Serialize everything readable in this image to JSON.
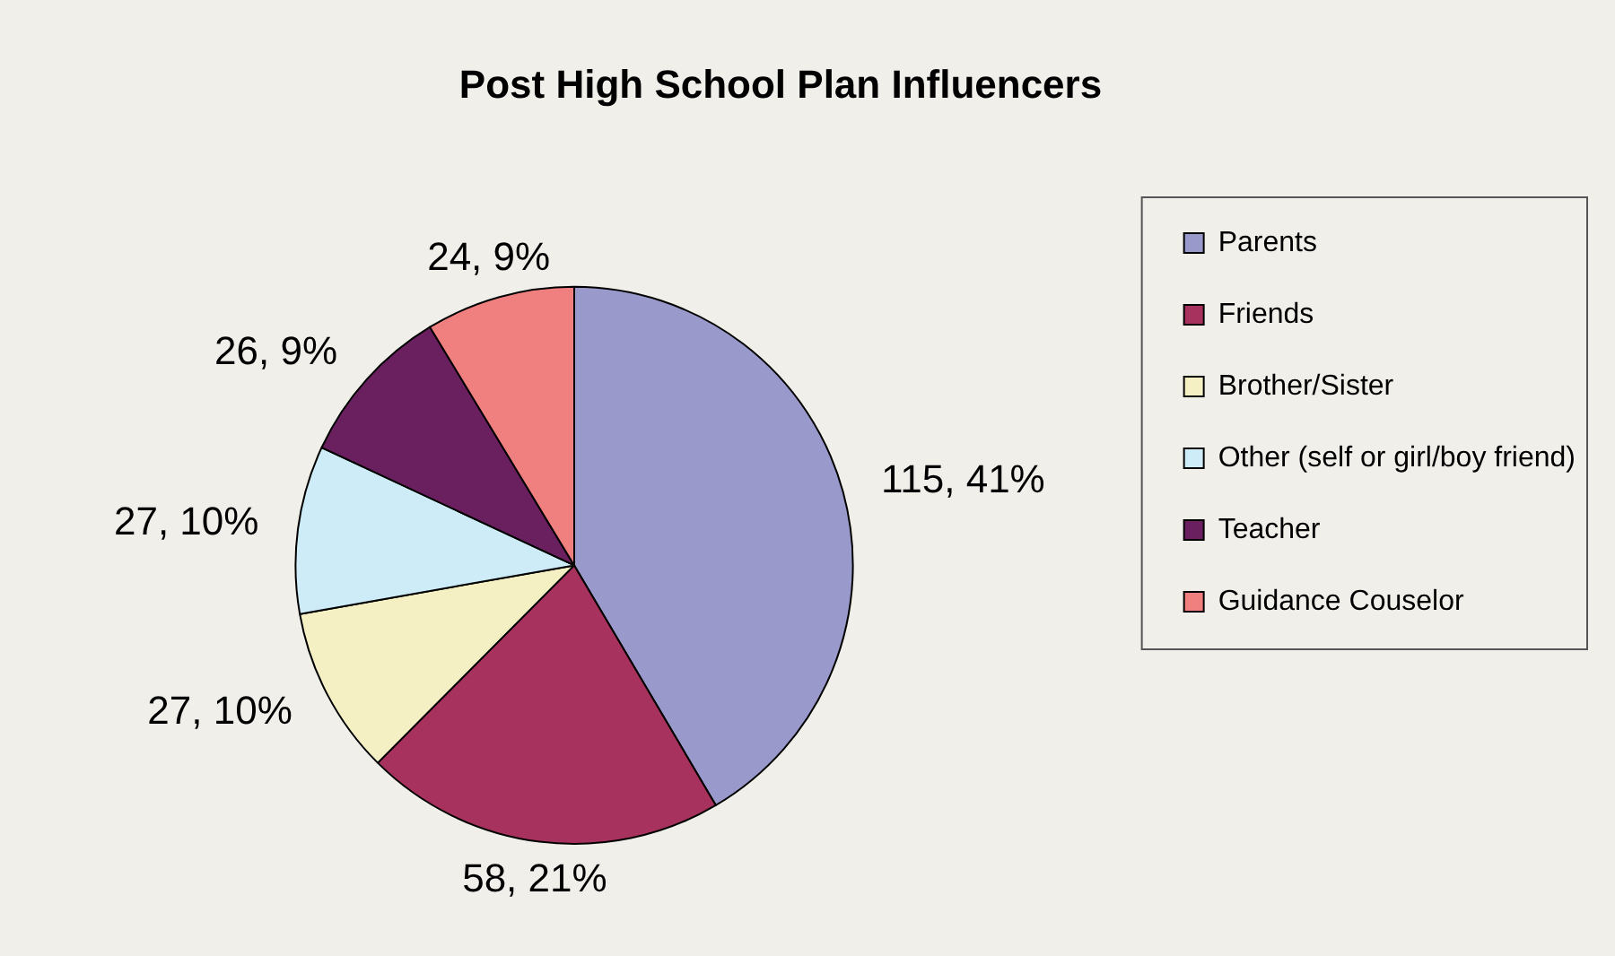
{
  "chart_data": {
    "type": "pie",
    "title": "Post High School Plan Influencers",
    "categories": [
      "Parents",
      "Friends",
      "Brother/Sister",
      "Other (self or girl/boy friend)",
      "Teacher",
      "Guidance Couselor"
    ],
    "values": [
      115,
      58,
      27,
      27,
      26,
      24
    ],
    "colors": [
      "#9999cc",
      "#a8325e",
      "#f5f0c4",
      "#cdecf7",
      "#6a1f5e",
      "#f08080"
    ],
    "value_labels": [
      "115, 41%",
      "58, 21%",
      "27, 10%",
      "27, 10%",
      "26, 9%",
      "24, 9%"
    ],
    "legend": "right"
  }
}
